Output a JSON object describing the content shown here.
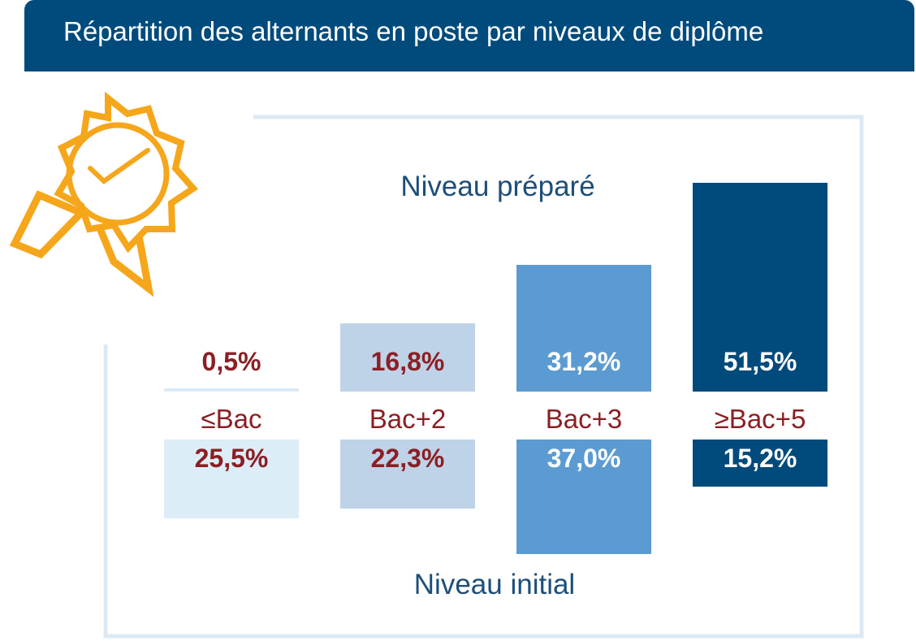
{
  "header": {
    "title": "Répartition des alternants en poste par niveaux de diplôme"
  },
  "colors": {
    "header_bg": "#014b7c",
    "badge": "#f5a61b",
    "frame": "#dce9f5",
    "label_dark": "#8b1f24",
    "label_light": "#ffffff"
  },
  "chart_data": {
    "type": "bar",
    "title": "Répartition des alternants en poste par niveaux de diplôme",
    "categories": [
      "≤Bac",
      "Bac+2",
      "Bac+3",
      "≥Bac+5"
    ],
    "category_colors": [
      "#dcedf8",
      "#bfd3e8",
      "#5b9bd1",
      "#014b7c"
    ],
    "series": [
      {
        "name": "Niveau préparé",
        "direction": "up",
        "values": [
          0.5,
          16.8,
          31.2,
          51.5
        ],
        "labels": [
          "0,5%",
          "16,8%",
          "31,2%",
          "51,5%"
        ]
      },
      {
        "name": "Niveau initial",
        "direction": "down",
        "values": [
          25.5,
          22.3,
          37.0,
          15.2
        ],
        "labels": [
          "25,5%",
          "22,3%",
          "37,0%",
          "15,2%"
        ]
      }
    ],
    "unit": "%"
  }
}
